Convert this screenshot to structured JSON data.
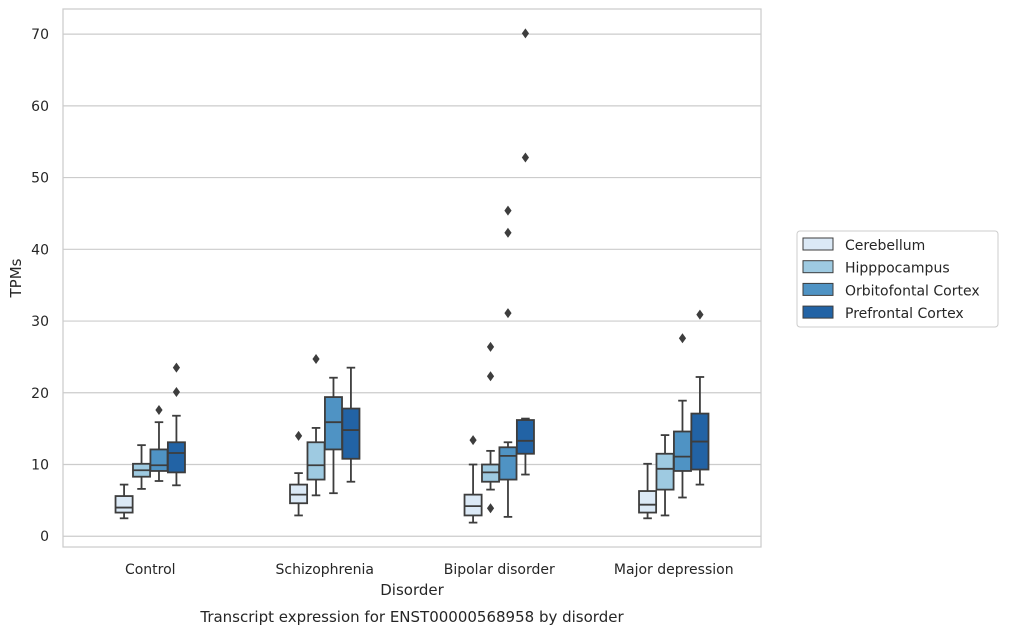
{
  "chart_data": {
    "type": "boxplot",
    "xlabel": "Disorder",
    "ylabel": "TPMs",
    "caption": "Transcript expression for ENST00000568958 by disorder",
    "ylim": [
      -1.5,
      73.5
    ],
    "yticks": [
      0,
      10,
      20,
      30,
      40,
      50,
      60,
      70
    ],
    "grid": "horizontal",
    "legend_position": "right",
    "categories": [
      "Control",
      "Schizophrenia",
      "Bipolar disorder",
      "Major depression"
    ],
    "series": [
      {
        "name": "Cerebellum",
        "color": "#dbe9f6",
        "boxes": [
          {
            "whislo": 2.5,
            "q1": 3.3,
            "med": 4.0,
            "q3": 5.6,
            "whishi": 7.2,
            "fliers": []
          },
          {
            "whislo": 2.9,
            "q1": 4.6,
            "med": 5.8,
            "q3": 7.2,
            "whishi": 8.8,
            "fliers": [
              14.0
            ]
          },
          {
            "whislo": 1.9,
            "q1": 2.9,
            "med": 4.2,
            "q3": 5.8,
            "whishi": 10.0,
            "fliers": [
              13.4
            ]
          },
          {
            "whislo": 2.5,
            "q1": 3.3,
            "med": 4.4,
            "q3": 6.3,
            "whishi": 10.1,
            "fliers": []
          }
        ]
      },
      {
        "name": "Hipppocampus",
        "color": "#9ecae1",
        "boxes": [
          {
            "whislo": 6.6,
            "q1": 8.3,
            "med": 9.2,
            "q3": 10.1,
            "whishi": 12.7,
            "fliers": []
          },
          {
            "whislo": 5.7,
            "q1": 7.9,
            "med": 9.9,
            "q3": 13.1,
            "whishi": 15.1,
            "fliers": [
              24.7
            ]
          },
          {
            "whislo": 6.5,
            "q1": 7.6,
            "med": 8.9,
            "q3": 10.0,
            "whishi": 11.9,
            "fliers": [
              3.9,
              22.3,
              26.4
            ]
          },
          {
            "whislo": 2.9,
            "q1": 6.5,
            "med": 9.4,
            "q3": 11.5,
            "whishi": 14.1,
            "fliers": []
          }
        ]
      },
      {
        "name": "Orbitofontal Cortex",
        "color": "#4f93c4",
        "boxes": [
          {
            "whislo": 7.7,
            "q1": 9.1,
            "med": 9.9,
            "q3": 12.1,
            "whishi": 15.9,
            "fliers": [
              17.6
            ]
          },
          {
            "whislo": 6.0,
            "q1": 12.1,
            "med": 15.9,
            "q3": 19.4,
            "whishi": 22.1,
            "fliers": []
          },
          {
            "whislo": 2.7,
            "q1": 7.9,
            "med": 11.2,
            "q3": 12.4,
            "whishi": 13.1,
            "fliers": [
              31.1,
              42.3,
              45.4
            ]
          },
          {
            "whislo": 5.4,
            "q1": 9.1,
            "med": 11.1,
            "q3": 14.6,
            "whishi": 18.9,
            "fliers": [
              27.6
            ]
          }
        ]
      },
      {
        "name": "Prefrontal Cortex",
        "color": "#2263a5",
        "boxes": [
          {
            "whislo": 7.1,
            "q1": 8.9,
            "med": 11.6,
            "q3": 13.1,
            "whishi": 16.8,
            "fliers": [
              20.1,
              23.5
            ]
          },
          {
            "whislo": 7.6,
            "q1": 10.8,
            "med": 14.8,
            "q3": 17.8,
            "whishi": 23.5,
            "fliers": []
          },
          {
            "whislo": 8.6,
            "q1": 11.5,
            "med": 13.3,
            "q3": 16.2,
            "whishi": 16.4,
            "fliers": [
              52.8,
              70.1
            ]
          },
          {
            "whislo": 7.2,
            "q1": 9.3,
            "med": 13.2,
            "q3": 17.1,
            "whishi": 22.2,
            "fliers": [
              30.9
            ]
          }
        ]
      }
    ]
  }
}
